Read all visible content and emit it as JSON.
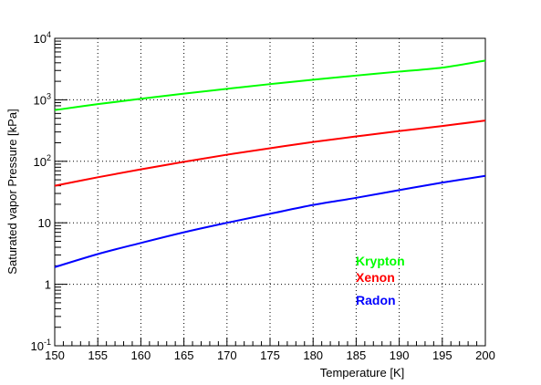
{
  "chart_data": {
    "type": "line",
    "xlabel": "Temperature [K]",
    "ylabel": "Saturated vapor Pressure [kPa]",
    "xlim": [
      150,
      200
    ],
    "ylim": [
      0.1,
      10000
    ],
    "y_scale": "log",
    "grid": true,
    "x_ticks": [
      "150",
      "155",
      "160",
      "165",
      "170",
      "175",
      "180",
      "185",
      "190",
      "195",
      "200"
    ],
    "y_ticks": [
      {
        "value": 0.1,
        "base": "10",
        "exp": "-1"
      },
      {
        "value": 1,
        "text": "1"
      },
      {
        "value": 10,
        "text": "10"
      },
      {
        "value": 100,
        "base": "10",
        "exp": "2"
      },
      {
        "value": 1000,
        "base": "10",
        "exp": "3"
      },
      {
        "value": 10000,
        "base": "10",
        "exp": "4"
      }
    ],
    "legend_position": "lower-right",
    "x": [
      150,
      155,
      160,
      165,
      170,
      175,
      180,
      185,
      190,
      195,
      200
    ],
    "series": [
      {
        "name": "Krypton",
        "color": "#00ff00",
        "values": [
          680,
          850,
          1040,
          1260,
          1510,
          1800,
          2120,
          2480,
          2880,
          3340,
          4350
        ]
      },
      {
        "name": "Xenon",
        "color": "#ff0000",
        "values": [
          40,
          55,
          74,
          98,
          128,
          163,
          206,
          254,
          310,
          375,
          460
        ]
      },
      {
        "name": "Radon",
        "color": "#0000ff",
        "values": [
          1.9,
          3.1,
          4.7,
          7.0,
          10.0,
          14.0,
          19.5,
          25.5,
          34.0,
          45.0,
          58.0
        ]
      }
    ]
  }
}
